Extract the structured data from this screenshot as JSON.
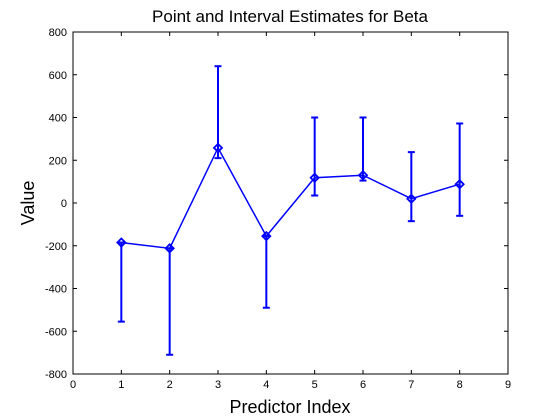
{
  "chart_data": {
    "type": "line",
    "title": "Point and Interval Estimates for Beta",
    "xlabel": "Predictor Index",
    "ylabel": "Value",
    "xlim": [
      0,
      9
    ],
    "ylim": [
      -800,
      800
    ],
    "xticks": [
      0,
      1,
      2,
      3,
      4,
      5,
      6,
      7,
      8,
      9
    ],
    "yticks": [
      -800,
      -600,
      -400,
      -200,
      0,
      200,
      400,
      600,
      800
    ],
    "grid": false,
    "series": [
      {
        "color": "#0000ff",
        "marker": "diamond",
        "x": [
          1,
          2,
          3,
          4,
          5,
          6,
          7,
          8
        ],
        "values": [
          -185,
          -212,
          258,
          -155,
          118,
          130,
          20,
          88
        ],
        "lower": [
          -555,
          -710,
          210,
          -490,
          35,
          105,
          -85,
          -60
        ],
        "upper": [
          -185,
          -212,
          640,
          -155,
          400,
          400,
          238,
          372
        ]
      }
    ]
  }
}
